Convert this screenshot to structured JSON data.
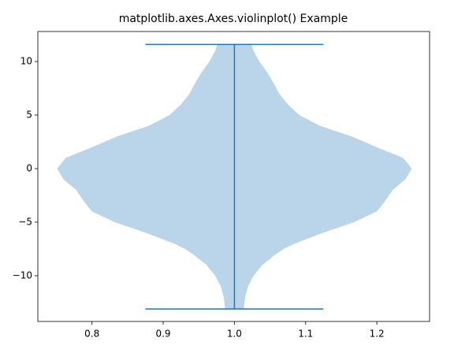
{
  "chart_data": {
    "type": "violin",
    "title": "matplotlib.axes.Axes.violinplot() Example",
    "position": 1,
    "width": 0.5,
    "min": -13.1,
    "max": 11.6,
    "density_y": [
      -13.1,
      -12,
      -11,
      -10,
      -9,
      -8,
      -7.5,
      -7,
      -6,
      -5,
      -4,
      -3,
      -2,
      -1,
      0,
      1,
      2,
      3,
      4,
      5,
      6,
      7,
      8,
      9,
      10,
      11,
      11.6
    ],
    "density_halfwidth": [
      0.013,
      0.015,
      0.019,
      0.027,
      0.039,
      0.058,
      0.069,
      0.085,
      0.124,
      0.168,
      0.2,
      0.212,
      0.222,
      0.24,
      0.249,
      0.237,
      0.2,
      0.165,
      0.12,
      0.091,
      0.075,
      0.063,
      0.055,
      0.046,
      0.035,
      0.027,
      0.024
    ],
    "fill_color": "#bad5e9",
    "line_color": "#1f77b4",
    "xlim": [
      0.724,
      1.274
    ],
    "ylim": [
      -14.27,
      12.8
    ],
    "xticks": [
      0.8,
      0.9,
      {
        "value": 1,
        "label": "1.0"
      },
      1.1,
      1.2
    ],
    "yticks": [
      {
        "value": -10,
        "label": "−10"
      },
      {
        "value": -5,
        "label": "−5"
      },
      0,
      5,
      10
    ]
  }
}
